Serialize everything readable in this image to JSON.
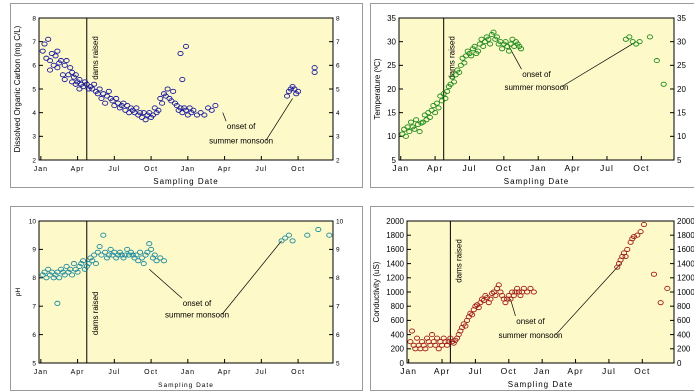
{
  "chart_data": [
    {
      "type": "scatter",
      "xlabel": "Sampling Date",
      "ylabel": "Dissolved Organic Carbon (mg C/L)",
      "x_ticks": [
        "Jan",
        "Apr",
        "Jul",
        "Oct",
        "Jan",
        "Apr",
        "Jul",
        "Oct"
      ],
      "xlim": [
        0,
        8
      ],
      "ylim": [
        2,
        8
      ],
      "y_ticks": [
        2,
        3,
        4,
        5,
        6,
        7,
        8
      ],
      "right_y_ticks": [
        2,
        3,
        4,
        5,
        6,
        7,
        8
      ],
      "grid": false,
      "marker_color": "#1a1aa0",
      "plot_background": "#fdf9c8",
      "vline_x": 1.3,
      "annotations": [
        {
          "text": "dams raised",
          "x": 1.3,
          "rotate": true
        },
        {
          "text": "onset of",
          "x": 5.5,
          "y": 3.3,
          "target": [
            5.0,
            4.0
          ]
        },
        {
          "text": "summer monsoon",
          "x": 5.5,
          "y": 2.7,
          "target": [
            6.9,
            4.6
          ]
        }
      ],
      "series": [
        {
          "x": [
            0.1,
            0.15,
            0.2,
            0.25,
            0.3,
            0.3,
            0.35,
            0.4,
            0.45,
            0.5,
            0.5,
            0.55,
            0.6,
            0.65,
            0.7,
            0.7,
            0.75,
            0.8,
            0.85,
            0.9,
            0.9,
            0.95,
            1.0,
            1.0,
            1.05,
            1.1,
            1.1,
            1.15,
            1.2,
            1.25,
            1.3,
            1.35,
            1.4,
            1.45,
            1.5,
            1.55,
            1.6,
            1.65,
            1.7,
            1.75,
            1.8,
            1.85,
            1.9,
            1.95,
            2.0,
            2.05,
            2.1,
            2.15,
            2.2,
            2.25,
            2.3,
            2.35,
            2.4,
            2.45,
            2.5,
            2.55,
            2.6,
            2.65,
            2.7,
            2.75,
            2.8,
            2.85,
            2.9,
            2.95,
            3.0,
            3.05,
            3.1,
            3.15,
            3.2,
            3.25,
            3.3,
            3.35,
            3.4,
            3.45,
            3.5,
            3.55,
            3.6,
            3.65,
            3.7,
            3.75,
            3.8,
            3.85,
            3.9,
            3.95,
            4.0,
            4.05,
            4.1,
            4.15,
            4.2,
            4.3,
            4.4,
            4.5,
            4.6,
            4.7,
            4.8,
            3.85,
            3.9,
            4.0,
            6.75,
            6.8,
            6.85,
            6.9,
            6.95,
            7.0,
            7.05,
            7.5,
            7.5
          ],
          "y": [
            6.6,
            6.9,
            6.3,
            7.1,
            6.2,
            5.8,
            6.5,
            6.0,
            6.4,
            6.6,
            5.9,
            6.1,
            6.2,
            5.6,
            6.0,
            5.4,
            6.2,
            5.6,
            5.9,
            5.3,
            5.7,
            5.5,
            5.6,
            5.2,
            5.3,
            5.4,
            5.0,
            5.2,
            5.1,
            5.3,
            5.2,
            5.0,
            5.1,
            5.0,
            5.2,
            4.9,
            4.8,
            5.0,
            4.6,
            4.8,
            4.4,
            4.7,
            4.9,
            4.6,
            4.5,
            4.3,
            4.6,
            4.4,
            4.2,
            4.3,
            4.4,
            4.1,
            4.3,
            4.0,
            4.2,
            4.1,
            4.0,
            4.2,
            3.9,
            4.0,
            3.8,
            4.0,
            3.7,
            3.9,
            4.0,
            3.8,
            3.9,
            4.2,
            4.0,
            4.1,
            4.6,
            4.4,
            4.8,
            4.7,
            5.0,
            4.6,
            4.5,
            4.9,
            4.4,
            4.3,
            4.1,
            4.2,
            4.0,
            4.2,
            4.1,
            3.9,
            4.2,
            4.0,
            4.1,
            3.9,
            4.0,
            3.9,
            4.2,
            4.1,
            4.3,
            6.5,
            5.4,
            6.8,
            4.7,
            4.9,
            5.0,
            5.1,
            5.0,
            4.8,
            4.9,
            5.7,
            5.9
          ]
        }
      ]
    },
    {
      "type": "scatter",
      "xlabel": "Sampling Date",
      "ylabel": "Temperature (ºC)",
      "x_ticks": [
        "Jan",
        "Apr",
        "Jul",
        "Oct",
        "Jan",
        "Apr",
        "Jul",
        "Oct"
      ],
      "xlim": [
        0,
        8
      ],
      "ylim": [
        5,
        35
      ],
      "y_ticks": [
        5,
        10,
        15,
        20,
        25,
        30,
        35
      ],
      "right_y_ticks": [
        5,
        10,
        15,
        20,
        25,
        30,
        35
      ],
      "grid": false,
      "marker_color": "#1c8a1c",
      "plot_background": "#fdf9c8",
      "vline_x": 1.3,
      "annotations": [
        {
          "text": "dams raised",
          "x": 1.3,
          "rotate": true
        },
        {
          "text": "onset of",
          "x": 4.0,
          "y": 22.5,
          "target": [
            3.2,
            29.0
          ]
        },
        {
          "text": "summer monsoon",
          "x": 4.0,
          "y": 19.8,
          "target": [
            6.9,
            30.0
          ]
        }
      ],
      "series": [
        {
          "x": [
            0.1,
            0.15,
            0.2,
            0.25,
            0.3,
            0.35,
            0.4,
            0.45,
            0.5,
            0.55,
            0.6,
            0.65,
            0.7,
            0.75,
            0.8,
            0.85,
            0.9,
            0.95,
            1.0,
            1.05,
            1.1,
            1.15,
            1.2,
            1.25,
            1.3,
            1.35,
            1.4,
            1.45,
            1.5,
            1.55,
            1.6,
            1.65,
            1.7,
            1.75,
            1.8,
            1.85,
            1.9,
            1.95,
            2.0,
            2.05,
            2.1,
            2.15,
            2.2,
            2.25,
            2.3,
            2.35,
            2.4,
            2.45,
            2.5,
            2.55,
            2.6,
            2.65,
            2.7,
            2.75,
            2.8,
            2.85,
            2.9,
            2.95,
            3.0,
            3.05,
            3.1,
            3.15,
            3.2,
            3.25,
            3.3,
            3.35,
            3.4,
            3.45,
            3.5,
            3.55,
            6.6,
            6.7,
            6.8,
            6.9,
            7.0,
            7.3,
            7.5,
            7.7
          ],
          "y": [
            10.5,
            11.5,
            10.0,
            12.0,
            11.0,
            13.0,
            12.0,
            11.5,
            13.5,
            12.5,
            11.0,
            12.8,
            13.0,
            14.5,
            13.5,
            15.0,
            14.0,
            15.5,
            16.5,
            15.0,
            17.0,
            16.0,
            18.5,
            17.5,
            19.0,
            18.0,
            19.5,
            20.5,
            21.0,
            22.5,
            21.5,
            23.0,
            24.0,
            23.5,
            25.0,
            26.5,
            25.5,
            27.0,
            28.0,
            27.5,
            27.0,
            28.5,
            29.0,
            27.5,
            28.0,
            29.5,
            30.5,
            29.0,
            30.0,
            31.0,
            30.5,
            29.5,
            31.5,
            32.0,
            30.5,
            31.0,
            29.5,
            30.0,
            28.5,
            29.5,
            30.0,
            29.0,
            28.0,
            29.5,
            30.5,
            29.0,
            30.0,
            29.5,
            29.0,
            28.5,
            30.5,
            31.0,
            30.0,
            29.5,
            30.0,
            31.0,
            26.0,
            21.0
          ]
        }
      ]
    },
    {
      "type": "scatter",
      "xlabel": "Sampling Date",
      "ylabel": "pH",
      "x_ticks": [
        "Jan",
        "Apr",
        "Jul",
        "Oct",
        "Jan",
        "Apr",
        "Jul",
        "Oct"
      ],
      "xlim": [
        0,
        8
      ],
      "ylim": [
        5,
        10
      ],
      "y_ticks": [
        5,
        6,
        7,
        8,
        9,
        10
      ],
      "right_y_ticks": [
        5,
        6,
        7,
        8,
        9,
        10
      ],
      "grid": false,
      "marker_color": "#1a8aa0",
      "plot_background": "#fdf9c8",
      "vline_x": 1.3,
      "annotations": [
        {
          "text": "dams raised",
          "x": 1.3,
          "rotate": true
        },
        {
          "text": "onset of",
          "x": 4.3,
          "y": 7.0,
          "target": [
            3.0,
            8.3
          ]
        },
        {
          "text": "summer monsoon",
          "x": 4.3,
          "y": 6.6,
          "target": [
            6.6,
            9.3
          ]
        }
      ],
      "series": [
        {
          "x": [
            0.1,
            0.15,
            0.2,
            0.25,
            0.3,
            0.35,
            0.4,
            0.45,
            0.5,
            0.55,
            0.6,
            0.65,
            0.7,
            0.75,
            0.8,
            0.85,
            0.9,
            0.95,
            1.0,
            1.05,
            1.1,
            1.15,
            1.2,
            1.25,
            1.3,
            1.35,
            1.4,
            1.45,
            1.5,
            1.55,
            1.6,
            1.65,
            1.7,
            1.75,
            1.8,
            1.85,
            1.9,
            1.95,
            2.0,
            2.05,
            2.1,
            2.15,
            2.2,
            2.25,
            2.3,
            2.35,
            2.4,
            2.45,
            2.5,
            2.55,
            2.6,
            2.65,
            2.7,
            2.75,
            2.8,
            2.85,
            2.9,
            2.95,
            3.0,
            3.05,
            3.1,
            3.15,
            3.2,
            3.3,
            3.4,
            0.5,
            6.6,
            6.7,
            6.8,
            6.9,
            7.3,
            7.6,
            7.9
          ],
          "y": [
            8.1,
            8.2,
            8.0,
            8.3,
            8.1,
            8.2,
            8.0,
            8.1,
            8.2,
            8.0,
            8.3,
            8.2,
            8.1,
            8.4,
            8.2,
            8.3,
            8.1,
            8.5,
            8.3,
            8.2,
            8.4,
            8.5,
            8.6,
            8.3,
            8.4,
            8.5,
            8.7,
            8.6,
            8.8,
            8.5,
            8.9,
            9.1,
            8.8,
            9.5,
            8.9,
            8.7,
            8.8,
            9.0,
            8.8,
            8.9,
            8.7,
            8.8,
            8.9,
            8.8,
            8.7,
            8.8,
            9.0,
            8.8,
            8.9,
            8.8,
            8.7,
            8.8,
            8.6,
            8.9,
            8.7,
            8.5,
            8.8,
            8.9,
            9.2,
            9.0,
            8.7,
            8.8,
            8.6,
            8.7,
            8.6,
            7.1,
            9.3,
            9.4,
            9.5,
            9.3,
            9.5,
            9.7,
            9.5
          ]
        }
      ]
    },
    {
      "type": "scatter",
      "xlabel": "Sampling Date",
      "ylabel": "Conductivity (uS)",
      "x_ticks": [
        "Jan",
        "Apr",
        "Jul",
        "Oct",
        "Jan",
        "Apr",
        "Jul",
        "Oct"
      ],
      "xlim": [
        0,
        8
      ],
      "ylim": [
        0,
        2000
      ],
      "y_ticks": [
        0,
        200,
        400,
        600,
        800,
        1000,
        1200,
        1400,
        1600,
        1800,
        2000
      ],
      "right_y_ticks": [
        0,
        200,
        400,
        600,
        800,
        1000,
        1200,
        1400,
        1600,
        1800,
        2000
      ],
      "grid": false,
      "marker_color": "#a01a1a",
      "plot_background": "#fdf9c8",
      "vline_x": 1.3,
      "annotations": [
        {
          "text": "dams raised",
          "x": 1.3,
          "rotate": true
        },
        {
          "text": "onset of",
          "x": 3.7,
          "y": 550,
          "target": [
            3.1,
            900
          ]
        },
        {
          "text": "summer monsoon",
          "x": 3.7,
          "y": 350,
          "target": [
            6.4,
            1400
          ]
        }
      ],
      "series": [
        {
          "x": [
            0.1,
            0.15,
            0.2,
            0.25,
            0.3,
            0.35,
            0.4,
            0.45,
            0.5,
            0.55,
            0.6,
            0.65,
            0.7,
            0.75,
            0.8,
            0.85,
            0.9,
            0.95,
            1.0,
            1.05,
            1.1,
            1.15,
            1.2,
            1.25,
            1.3,
            1.35,
            1.4,
            1.45,
            1.5,
            1.55,
            1.6,
            1.65,
            1.7,
            1.75,
            1.8,
            1.85,
            1.9,
            1.95,
            2.0,
            2.05,
            2.1,
            2.15,
            2.2,
            2.25,
            2.3,
            2.35,
            2.4,
            2.45,
            2.5,
            2.55,
            2.6,
            2.65,
            2.7,
            2.75,
            2.8,
            2.85,
            2.9,
            2.95,
            3.0,
            3.05,
            3.1,
            3.15,
            3.2,
            3.25,
            3.3,
            3.35,
            3.4,
            3.45,
            3.5,
            3.6,
            3.7,
            3.8,
            6.3,
            6.35,
            6.4,
            6.45,
            6.5,
            6.55,
            6.6,
            6.7,
            6.75,
            6.8,
            6.9,
            7.0,
            7.1,
            7.4,
            7.6,
            7.8
          ],
          "y": [
            300,
            450,
            250,
            200,
            350,
            250,
            200,
            300,
            250,
            200,
            350,
            300,
            250,
            400,
            300,
            250,
            350,
            200,
            300,
            250,
            350,
            300,
            250,
            300,
            350,
            300,
            280,
            320,
            350,
            400,
            450,
            500,
            550,
            520,
            600,
            650,
            700,
            680,
            750,
            800,
            820,
            780,
            850,
            900,
            880,
            950,
            920,
            850,
            900,
            980,
            1000,
            950,
            1050,
            1100,
            1000,
            950,
            900,
            850,
            900,
            950,
            900,
            1000,
            950,
            1000,
            1050,
            1000,
            950,
            1000,
            1050,
            1000,
            1050,
            1000,
            1350,
            1400,
            1450,
            1500,
            1550,
            1500,
            1600,
            1700,
            1750,
            1780,
            1800,
            1850,
            1950,
            1250,
            850,
            1050
          ]
        }
      ]
    }
  ]
}
